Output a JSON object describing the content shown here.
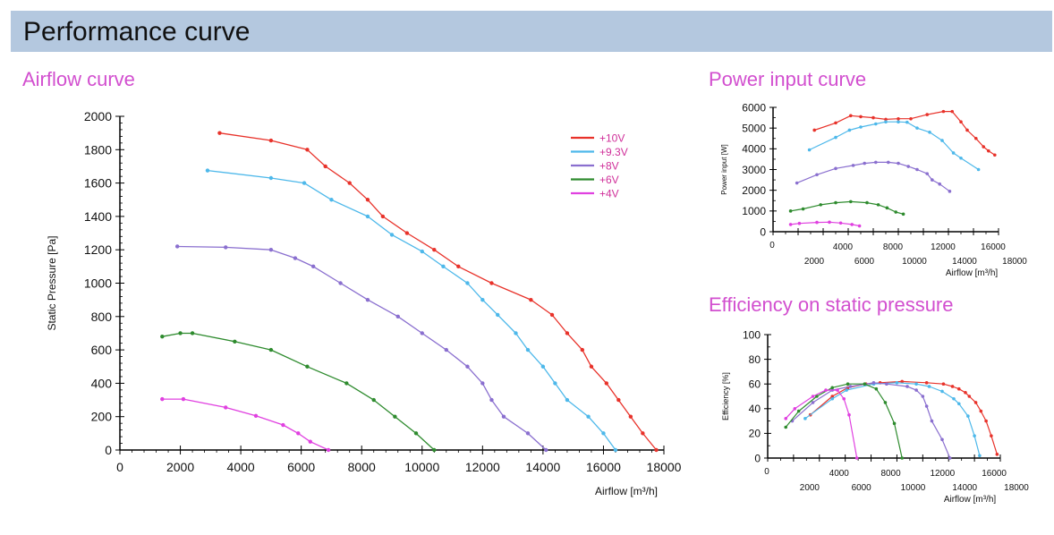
{
  "header": {
    "title": "Performance curve"
  },
  "sections": {
    "airflow": "Airflow curve",
    "power": "Power input curve",
    "efficiency": "Efficiency on static pressure"
  },
  "colors": {
    "10V": "#e8322a",
    "9.3V": "#4db8ea",
    "8V": "#8a6fcf",
    "6V": "#2e8b2e",
    "4V": "#e040e0",
    "legend_text": "#d0309a"
  },
  "chart_data": [
    {
      "id": "airflow",
      "type": "line",
      "xlabel": "Airflow [m³/h]",
      "ylabel": "Static Pressure [Pa]",
      "xlim": [
        0,
        18000
      ],
      "ylim": [
        0,
        2000
      ],
      "xticks": [
        "0",
        "2000",
        "4000",
        "6000",
        "8000",
        "10000",
        "12000",
        "14000",
        "16000",
        "18000"
      ],
      "yticks": [
        "0",
        "200",
        "400",
        "600",
        "800",
        "1000",
        "1200",
        "1400",
        "1600",
        "1800",
        "2000"
      ],
      "legend": "top-right",
      "series": [
        {
          "name": "+10V",
          "color": "#e8322a",
          "points": [
            [
              3300,
              1900
            ],
            [
              5000,
              1855
            ],
            [
              6200,
              1800
            ],
            [
              6800,
              1700
            ],
            [
              7600,
              1600
            ],
            [
              8200,
              1500
            ],
            [
              8700,
              1400
            ],
            [
              9500,
              1300
            ],
            [
              10400,
              1200
            ],
            [
              11200,
              1100
            ],
            [
              12300,
              1000
            ],
            [
              13600,
              900
            ],
            [
              14300,
              810
            ],
            [
              14800,
              700
            ],
            [
              15300,
              600
            ],
            [
              15600,
              500
            ],
            [
              16100,
              400
            ],
            [
              16500,
              300
            ],
            [
              16900,
              200
            ],
            [
              17300,
              100
            ],
            [
              17750,
              0
            ]
          ]
        },
        {
          "name": "+9.3V",
          "color": "#4db8ea",
          "points": [
            [
              2900,
              1675
            ],
            [
              5000,
              1630
            ],
            [
              6100,
              1600
            ],
            [
              7000,
              1500
            ],
            [
              8200,
              1400
            ],
            [
              9000,
              1290
            ],
            [
              10000,
              1190
            ],
            [
              10700,
              1100
            ],
            [
              11500,
              1000
            ],
            [
              12000,
              900
            ],
            [
              12500,
              810
            ],
            [
              13100,
              700
            ],
            [
              13500,
              600
            ],
            [
              14000,
              500
            ],
            [
              14400,
              400
            ],
            [
              14800,
              300
            ],
            [
              15500,
              200
            ],
            [
              16000,
              100
            ],
            [
              16400,
              0
            ]
          ]
        },
        {
          "name": "+8V",
          "color": "#8a6fcf",
          "points": [
            [
              1900,
              1220
            ],
            [
              3500,
              1215
            ],
            [
              5000,
              1200
            ],
            [
              5800,
              1150
            ],
            [
              6400,
              1100
            ],
            [
              7300,
              1000
            ],
            [
              8200,
              900
            ],
            [
              9200,
              800
            ],
            [
              10000,
              700
            ],
            [
              10800,
              600
            ],
            [
              11500,
              500
            ],
            [
              12000,
              400
            ],
            [
              12300,
              300
            ],
            [
              12700,
              200
            ],
            [
              13500,
              100
            ],
            [
              14100,
              0
            ]
          ]
        },
        {
          "name": "+6V",
          "color": "#2e8b2e",
          "points": [
            [
              1400,
              680
            ],
            [
              2000,
              700
            ],
            [
              2400,
              700
            ],
            [
              3800,
              650
            ],
            [
              5000,
              600
            ],
            [
              6200,
              500
            ],
            [
              7500,
              400
            ],
            [
              8400,
              300
            ],
            [
              9100,
              200
            ],
            [
              9800,
              100
            ],
            [
              10400,
              0
            ]
          ]
        },
        {
          "name": "+4V",
          "color": "#e040e0",
          "points": [
            [
              1400,
              305
            ],
            [
              2100,
              305
            ],
            [
              3500,
              255
            ],
            [
              4500,
              205
            ],
            [
              5400,
              150
            ],
            [
              5900,
              100
            ],
            [
              6300,
              50
            ],
            [
              6900,
              0
            ]
          ]
        }
      ]
    },
    {
      "id": "power",
      "type": "line",
      "xlabel": "Airflow [m³/h]",
      "ylabel": "Power input [W]",
      "xlim": [
        0,
        18000
      ],
      "ylim": [
        0,
        6000
      ],
      "xticks": [
        "2000",
        "4000",
        "6000",
        "8000",
        "10000",
        "12000",
        "14000",
        "16000",
        "18000"
      ],
      "yticks": [
        "0",
        "1000",
        "2000",
        "3000",
        "4000",
        "5000",
        "6000"
      ],
      "series": [
        {
          "name": "+10V",
          "color": "#e8322a",
          "points": [
            [
              3300,
              4900
            ],
            [
              5000,
              5250
            ],
            [
              6200,
              5600
            ],
            [
              7000,
              5550
            ],
            [
              8000,
              5500
            ],
            [
              9000,
              5420
            ],
            [
              10000,
              5450
            ],
            [
              11000,
              5450
            ],
            [
              12300,
              5650
            ],
            [
              13600,
              5800
            ],
            [
              14300,
              5800
            ],
            [
              15000,
              5300
            ],
            [
              15500,
              4900
            ],
            [
              16200,
              4500
            ],
            [
              16800,
              4100
            ],
            [
              17200,
              3900
            ],
            [
              17700,
              3700
            ]
          ]
        },
        {
          "name": "+9.3V",
          "color": "#4db8ea",
          "points": [
            [
              2900,
              3950
            ],
            [
              5000,
              4550
            ],
            [
              6100,
              4900
            ],
            [
              7000,
              5050
            ],
            [
              8200,
              5200
            ],
            [
              9000,
              5300
            ],
            [
              10000,
              5300
            ],
            [
              10700,
              5280
            ],
            [
              11500,
              5000
            ],
            [
              12500,
              4800
            ],
            [
              13500,
              4400
            ],
            [
              14400,
              3800
            ],
            [
              15000,
              3550
            ],
            [
              16400,
              3000
            ]
          ]
        },
        {
          "name": "+8V",
          "color": "#8a6fcf",
          "points": [
            [
              1900,
              2350
            ],
            [
              3500,
              2750
            ],
            [
              5000,
              3050
            ],
            [
              6400,
              3200
            ],
            [
              7300,
              3300
            ],
            [
              8200,
              3350
            ],
            [
              9200,
              3350
            ],
            [
              10000,
              3300
            ],
            [
              10800,
              3150
            ],
            [
              11500,
              3000
            ],
            [
              12300,
              2800
            ],
            [
              12700,
              2500
            ],
            [
              13300,
              2300
            ],
            [
              14100,
              1950
            ]
          ]
        },
        {
          "name": "+6V",
          "color": "#2e8b2e",
          "points": [
            [
              1400,
              1000
            ],
            [
              2400,
              1100
            ],
            [
              3800,
              1300
            ],
            [
              5000,
              1400
            ],
            [
              6200,
              1450
            ],
            [
              7500,
              1400
            ],
            [
              8400,
              1300
            ],
            [
              9100,
              1150
            ],
            [
              9800,
              950
            ],
            [
              10400,
              850
            ]
          ]
        },
        {
          "name": "+4V",
          "color": "#e040e0",
          "points": [
            [
              1400,
              350
            ],
            [
              2100,
              400
            ],
            [
              3500,
              450
            ],
            [
              4500,
              460
            ],
            [
              5400,
              420
            ],
            [
              6300,
              350
            ],
            [
              6900,
              280
            ]
          ]
        }
      ]
    },
    {
      "id": "efficiency",
      "type": "line",
      "xlabel": "Airflow [m³/h]",
      "ylabel": "Efficiency [%]",
      "xlim": [
        0,
        18000
      ],
      "ylim": [
        0,
        100
      ],
      "xticks": [
        "2000",
        "4000",
        "6000",
        "8000",
        "10000",
        "12000",
        "14000",
        "16000",
        "18000"
      ],
      "yticks": [
        "0",
        "20",
        "40",
        "60",
        "80",
        "100"
      ],
      "series": [
        {
          "name": "+10V",
          "color": "#e8322a",
          "points": [
            [
              3300,
              35
            ],
            [
              5000,
              50
            ],
            [
              6200,
              57
            ],
            [
              7600,
              60
            ],
            [
              8700,
              61
            ],
            [
              10400,
              62
            ],
            [
              12300,
              61
            ],
            [
              13600,
              60
            ],
            [
              14300,
              58
            ],
            [
              14800,
              56
            ],
            [
              15300,
              53
            ],
            [
              15600,
              50
            ],
            [
              16100,
              45
            ],
            [
              16500,
              38
            ],
            [
              16900,
              30
            ],
            [
              17300,
              18
            ],
            [
              17750,
              3
            ]
          ]
        },
        {
          "name": "+9.3V",
          "color": "#4db8ea",
          "points": [
            [
              2900,
              32
            ],
            [
              5000,
              48
            ],
            [
              6100,
              55
            ],
            [
              8200,
              60
            ],
            [
              10000,
              61
            ],
            [
              11500,
              60
            ],
            [
              12500,
              58
            ],
            [
              13500,
              54
            ],
            [
              14400,
              48
            ],
            [
              14800,
              44
            ],
            [
              15500,
              34
            ],
            [
              16000,
              18
            ],
            [
              16400,
              2
            ]
          ]
        },
        {
          "name": "+8V",
          "color": "#8a6fcf",
          "points": [
            [
              1900,
              30
            ],
            [
              3500,
              45
            ],
            [
              5000,
              55
            ],
            [
              6400,
              58
            ],
            [
              8200,
              61
            ],
            [
              9200,
              60
            ],
            [
              10800,
              58
            ],
            [
              11500,
              55
            ],
            [
              12000,
              50
            ],
            [
              12300,
              42
            ],
            [
              12700,
              30
            ],
            [
              13500,
              15
            ],
            [
              14100,
              0
            ]
          ]
        },
        {
          "name": "+6V",
          "color": "#2e8b2e",
          "points": [
            [
              1400,
              25
            ],
            [
              2400,
              38
            ],
            [
              3800,
              50
            ],
            [
              5000,
              57
            ],
            [
              6200,
              60
            ],
            [
              7500,
              60
            ],
            [
              8400,
              56
            ],
            [
              9100,
              45
            ],
            [
              9800,
              28
            ],
            [
              10400,
              0
            ]
          ]
        },
        {
          "name": "+4V",
          "color": "#e040e0",
          "points": [
            [
              1400,
              32
            ],
            [
              2100,
              40
            ],
            [
              3500,
              50
            ],
            [
              4500,
              55
            ],
            [
              5400,
              55
            ],
            [
              5900,
              48
            ],
            [
              6300,
              35
            ],
            [
              6900,
              0
            ]
          ]
        }
      ]
    }
  ]
}
